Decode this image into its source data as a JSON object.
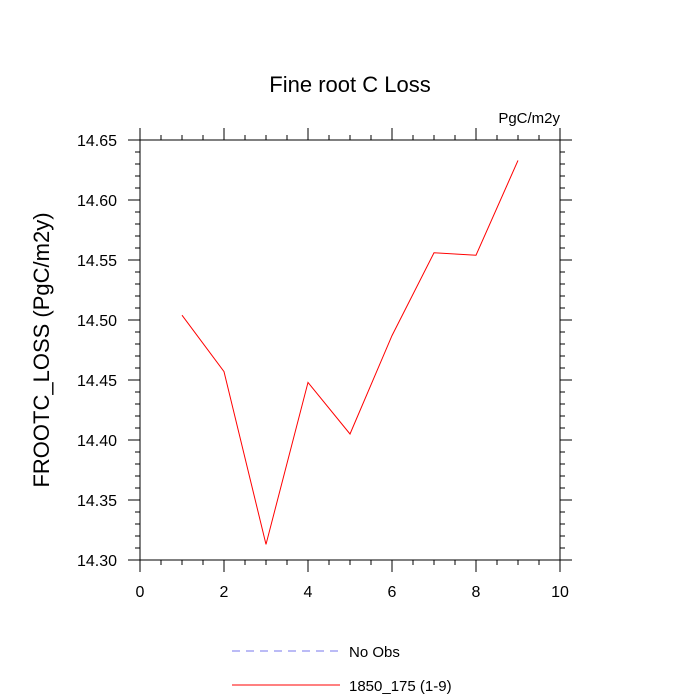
{
  "chart_data": {
    "type": "line",
    "title": "Fine root C Loss",
    "units": "PgC/m2y",
    "ylabel": "FROOTC_LOSS  (PgC/m2y)",
    "xlabel": "",
    "xlim": [
      0,
      10
    ],
    "ylim": [
      14.3,
      14.65
    ],
    "x_ticks": [
      0,
      2,
      4,
      6,
      8,
      10
    ],
    "x_tick_labels": [
      "0",
      "2",
      "4",
      "6",
      "8",
      "10"
    ],
    "y_ticks": [
      14.3,
      14.35,
      14.4,
      14.45,
      14.5,
      14.55,
      14.6,
      14.65
    ],
    "y_tick_labels": [
      "14.30",
      "14.35",
      "14.40",
      "14.45",
      "14.50",
      "14.55",
      "14.60",
      "14.65"
    ],
    "grid": false,
    "legend_position": "bottom",
    "series": [
      {
        "name": "No Obs",
        "color": "#7777ee",
        "dash": true,
        "x": [],
        "values": []
      },
      {
        "name": "1850_175 (1-9)",
        "color": "#ff0000",
        "dash": false,
        "x": [
          1,
          2,
          3,
          4,
          5,
          6,
          7,
          8,
          9
        ],
        "values": [
          14.504,
          14.457,
          14.313,
          14.448,
          14.405,
          14.487,
          14.556,
          14.554,
          14.633
        ]
      }
    ]
  }
}
